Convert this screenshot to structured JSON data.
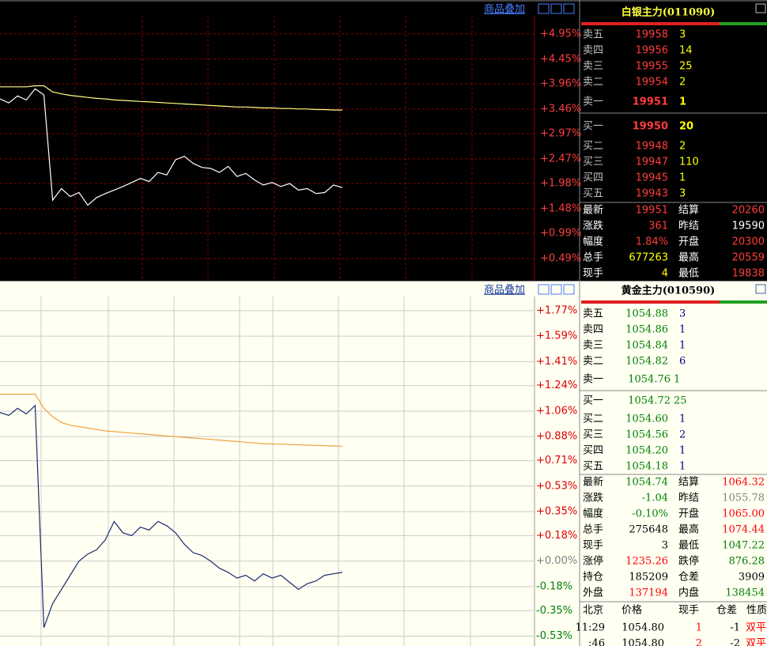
{
  "top": {
    "toolbar": "商品叠加",
    "chart": {
      "type": "line",
      "ylim": [
        0.05,
        5.31
      ],
      "yticks": [
        {
          "value": 4.95,
          "label": "+4.95%"
        },
        {
          "value": 4.45,
          "label": "+4.45%"
        },
        {
          "value": 3.96,
          "label": "+3.96%"
        },
        {
          "value": 3.46,
          "label": "+3.46%"
        },
        {
          "value": 2.97,
          "label": "+2.97%"
        },
        {
          "value": 2.47,
          "label": "+2.47%"
        },
        {
          "value": 1.98,
          "label": "+1.98%"
        },
        {
          "value": 1.48,
          "label": "+1.48%"
        },
        {
          "value": 0.99,
          "label": "+0.99%"
        },
        {
          "value": 0.49,
          "label": "+0.49%"
        }
      ],
      "grid": true,
      "series": [
        {
          "color": "#ffffff",
          "values": [
            3.66,
            3.58,
            3.72,
            3.64,
            3.86,
            3.74,
            1.65,
            1.88,
            1.72,
            1.8,
            1.55,
            1.7,
            1.78,
            1.85,
            1.92,
            2.0,
            2.08,
            2.02,
            2.2,
            2.15,
            2.45,
            2.52,
            2.38,
            2.3,
            2.28,
            2.2,
            2.32,
            2.12,
            2.18,
            2.05,
            1.95,
            2.0,
            1.92,
            1.98,
            1.85,
            1.88,
            1.78,
            1.8,
            1.95,
            1.9
          ]
        },
        {
          "color": "#ffff80",
          "values": [
            3.9,
            3.9,
            3.9,
            3.9,
            3.92,
            3.92,
            3.8,
            3.76,
            3.73,
            3.71,
            3.69,
            3.67,
            3.66,
            3.64,
            3.63,
            3.62,
            3.61,
            3.6,
            3.59,
            3.58,
            3.57,
            3.56,
            3.55,
            3.54,
            3.53,
            3.52,
            3.51,
            3.5,
            3.5,
            3.49,
            3.48,
            3.48,
            3.47,
            3.47,
            3.46,
            3.46,
            3.45,
            3.45,
            3.44,
            3.44
          ]
        }
      ]
    },
    "quote": {
      "title": "白银主力(011090)",
      "book": [
        [
          "卖五",
          "19958",
          "3"
        ],
        [
          "卖四",
          "19956",
          "14"
        ],
        [
          "卖三",
          "19955",
          "25"
        ],
        [
          "卖二",
          "19954",
          "2"
        ],
        [
          "卖一",
          "19951",
          "1"
        ],
        [
          "买一",
          "19950",
          "20"
        ],
        [
          "买二",
          "19948",
          "2"
        ],
        [
          "买三",
          "19947",
          "110"
        ],
        [
          "买四",
          "19945",
          "1"
        ],
        [
          "买五",
          "19943",
          "3"
        ]
      ],
      "stats": [
        [
          "最新",
          "19951",
          "结算",
          "20260"
        ],
        [
          "涨跌",
          "361",
          "昨结",
          "19590"
        ],
        [
          "幅度",
          "1.84%",
          "开盘",
          "20300"
        ],
        [
          "总手",
          "677263",
          "最高",
          "20559"
        ],
        [
          "现手",
          "4",
          "最低",
          "19838"
        ]
      ]
    }
  },
  "bottom": {
    "toolbar": "商品叠加",
    "chart": {
      "type": "line",
      "ylim": [
        -0.6,
        1.87
      ],
      "yticks": [
        {
          "value": 1.77,
          "label": "+1.77%"
        },
        {
          "value": 1.59,
          "label": "+1.59%"
        },
        {
          "value": 1.41,
          "label": "+1.41%"
        },
        {
          "value": 1.24,
          "label": "+1.24%"
        },
        {
          "value": 1.06,
          "label": "+1.06%"
        },
        {
          "value": 0.88,
          "label": "+0.88%"
        },
        {
          "value": 0.71,
          "label": "+0.71%"
        },
        {
          "value": 0.53,
          "label": "+0.53%"
        },
        {
          "value": 0.35,
          "label": "+0.35%"
        },
        {
          "value": 0.18,
          "label": "+0.18%"
        },
        {
          "value": 0,
          "label": "+0.00%"
        },
        {
          "value": -0.18,
          "label": "-0.18%"
        },
        {
          "value": -0.35,
          "label": "-0.35%"
        },
        {
          "value": -0.53,
          "label": "-0.53%"
        }
      ],
      "grid": true,
      "series": [
        {
          "color": "#1a2a6c",
          "values": [
            1.05,
            1.03,
            1.08,
            1.04,
            1.1,
            -0.47,
            -0.3,
            -0.2,
            -0.1,
            0.0,
            0.05,
            0.08,
            0.15,
            0.28,
            0.2,
            0.18,
            0.24,
            0.22,
            0.28,
            0.25,
            0.2,
            0.12,
            0.06,
            0.04,
            0.0,
            -0.05,
            -0.08,
            -0.12,
            -0.1,
            -0.14,
            -0.09,
            -0.12,
            -0.1,
            -0.15,
            -0.2,
            -0.16,
            -0.14,
            -0.1,
            -0.09,
            -0.08
          ]
        },
        {
          "color": "#f0a040",
          "values": [
            1.18,
            1.18,
            1.18,
            1.18,
            1.18,
            1.08,
            1.02,
            0.98,
            0.96,
            0.95,
            0.94,
            0.93,
            0.92,
            0.915,
            0.91,
            0.905,
            0.9,
            0.895,
            0.89,
            0.885,
            0.88,
            0.875,
            0.87,
            0.865,
            0.86,
            0.855,
            0.85,
            0.845,
            0.84,
            0.835,
            0.83,
            0.828,
            0.826,
            0.824,
            0.822,
            0.82,
            0.818,
            0.816,
            0.814,
            0.812
          ]
        }
      ]
    },
    "quote": {
      "title": "黄金主力(010590)",
      "book": [
        [
          "卖五",
          "1054.88",
          "3"
        ],
        [
          "卖四",
          "1054.86",
          "1"
        ],
        [
          "卖三",
          "1054.84",
          "1"
        ],
        [
          "卖二",
          "1054.82",
          "6"
        ],
        [
          "卖一",
          "1054.76",
          "1"
        ],
        [
          "买一",
          "1054.72",
          "25"
        ],
        [
          "买二",
          "1054.60",
          "1"
        ],
        [
          "买三",
          "1054.56",
          "2"
        ],
        [
          "买四",
          "1054.20",
          "1"
        ],
        [
          "买五",
          "1054.18",
          "1"
        ]
      ],
      "stats": [
        [
          "最新",
          "1054.74",
          "结算",
          "1064.32"
        ],
        [
          "涨跌",
          "-1.04",
          "昨结",
          "1055.78"
        ],
        [
          "幅度",
          "-0.10%",
          "开盘",
          "1065.00"
        ],
        [
          "总手",
          "275648",
          "最高",
          "1074.44"
        ],
        [
          "现手",
          "3",
          "最低",
          "1047.22"
        ],
        [
          "涨停",
          "1235.26",
          "跌停",
          "876.28"
        ],
        [
          "持仓",
          "185209",
          "仓差",
          "3909"
        ],
        [
          "外盘",
          "137194",
          "内盘",
          "138454"
        ]
      ],
      "trades_header": [
        "北京",
        "价格",
        "现手",
        "仓差",
        "性质"
      ],
      "trades": [
        [
          "11:29",
          "1054.80",
          "1",
          "-1",
          "双平"
        ],
        [
          ":46",
          "1054.80",
          "2",
          "-2",
          "双平"
        ]
      ]
    }
  }
}
